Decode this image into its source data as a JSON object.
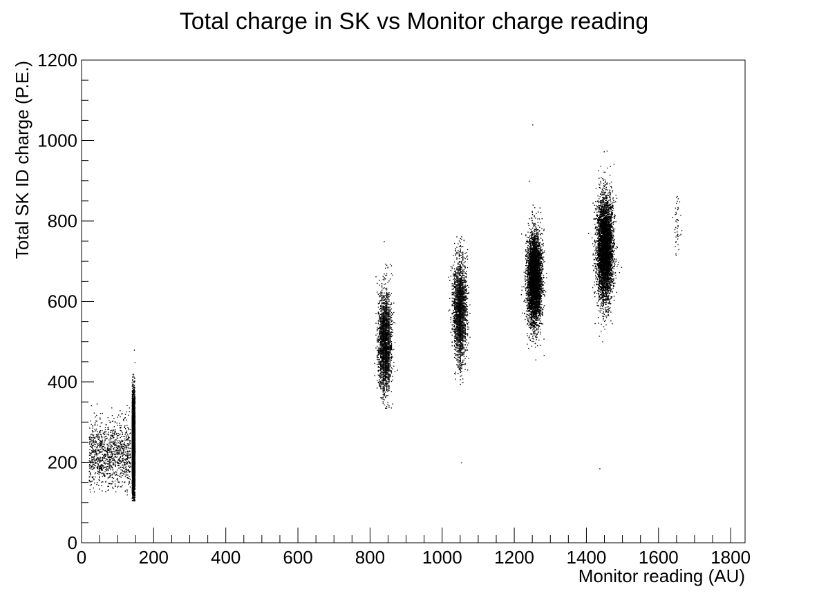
{
  "chart_data": {
    "type": "scatter",
    "title": "Total charge in SK vs Monitor charge reading",
    "xlabel": "Monitor reading (AU)",
    "ylabel": "Total SK ID charge (P.E.)",
    "xlim": [
      0,
      1840
    ],
    "ylim": [
      0,
      1200
    ],
    "x_ticks": [
      0,
      200,
      400,
      600,
      800,
      1000,
      1200,
      1400,
      1600,
      1800
    ],
    "y_ticks": [
      0,
      200,
      400,
      600,
      800,
      1000,
      1200
    ],
    "x_minor_step": 50,
    "y_minor_step": 50,
    "grid": false,
    "legend": "none",
    "marker_color": "#000000",
    "clusters": [
      {
        "x_range": [
          20,
          135
        ],
        "y_mean": 220,
        "y_sd": 42,
        "y_range": [
          120,
          350
        ],
        "density": "medium",
        "columns": "none"
      },
      {
        "x_center": 143,
        "x_spread": 4,
        "y_mean": 245,
        "y_sd": 60,
        "y_range": [
          105,
          480
        ],
        "density": "very-high",
        "columns": "single"
      },
      {
        "x_center": 840,
        "x_spread": 16,
        "y_mean": 500,
        "y_sd": 60,
        "y_range": [
          335,
          780
        ],
        "density": "high",
        "columns": "vertical-stripes"
      },
      {
        "x_center": 1048,
        "x_spread": 16,
        "y_mean": 580,
        "y_sd": 62,
        "y_range": [
          395,
          765
        ],
        "density": "high",
        "columns": "vertical-stripes"
      },
      {
        "x_center": 1255,
        "x_spread": 18,
        "y_mean": 655,
        "y_sd": 55,
        "y_range": [
          445,
          900
        ],
        "density": "very-high",
        "columns": "solid"
      },
      {
        "x_center": 1450,
        "x_spread": 20,
        "y_mean": 730,
        "y_sd": 65,
        "y_range": [
          495,
          980
        ],
        "density": "very-high",
        "columns": "solid"
      },
      {
        "x_center": 1650,
        "x_spread": 12,
        "y_mean": 790,
        "y_sd": 35,
        "y_range": [
          700,
          865
        ],
        "density": "sparse",
        "columns": "none"
      }
    ],
    "outliers": [
      {
        "x": 1250,
        "y": 1040
      },
      {
        "x": 1052,
        "y": 200
      },
      {
        "x": 1436,
        "y": 185
      },
      {
        "x": 1240,
        "y": 900
      },
      {
        "x": 838,
        "y": 750
      },
      {
        "x": 1456,
        "y": 975
      },
      {
        "x": 145,
        "y": 480
      }
    ]
  }
}
